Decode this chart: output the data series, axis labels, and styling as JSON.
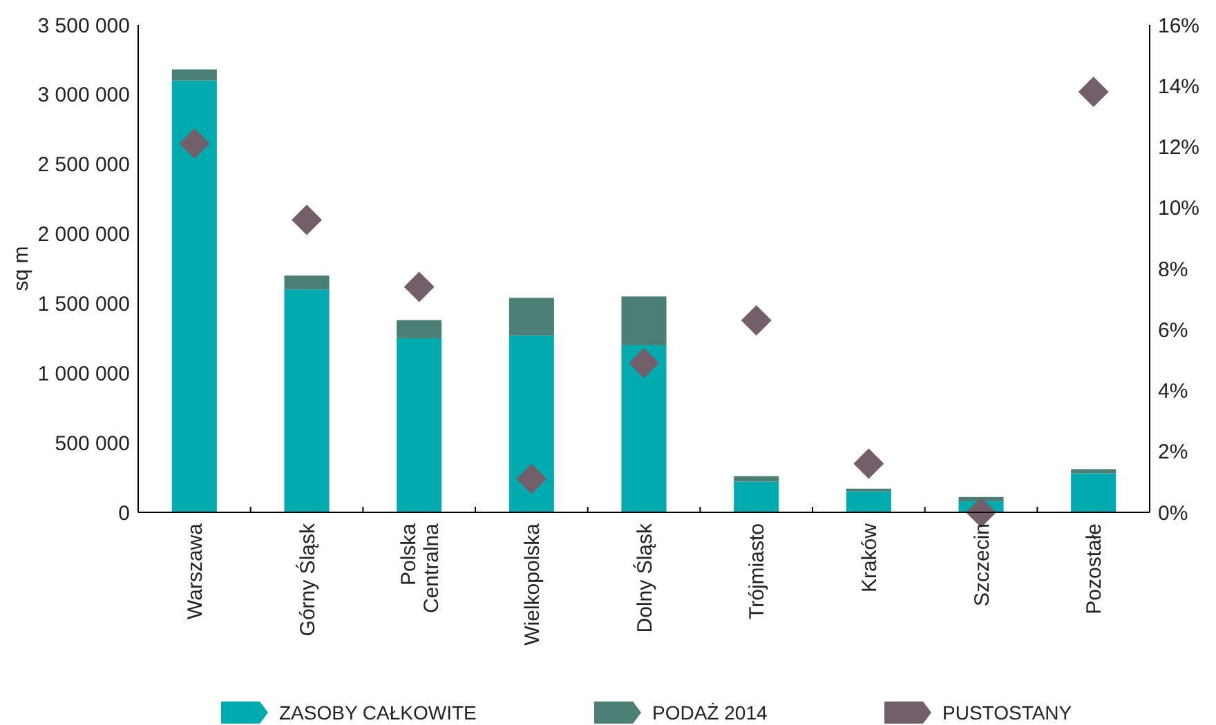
{
  "chart_data": {
    "type": "bar",
    "stacked": true,
    "ylabel": "sq m",
    "categories": [
      "Warszawa",
      "Górny Śląsk",
      "Polska Centralna",
      "Wielkopolska",
      "Dolny Śląsk",
      "Trójmiasto",
      "Kraków",
      "Szczecin",
      "Pozostałe"
    ],
    "series": [
      {
        "name": "ZASOBY CAŁKOWITE",
        "color": "#00abb0",
        "values": [
          3100000,
          1600000,
          1250000,
          1270000,
          1200000,
          220000,
          150000,
          80000,
          280000
        ]
      },
      {
        "name": "PODAŻ 2014",
        "color": "#4b7f75",
        "values": [
          80000,
          100000,
          130000,
          270000,
          350000,
          40000,
          20000,
          30000,
          30000
        ]
      },
      {
        "name": "PUSTOSTANY",
        "type": "scatter",
        "axis": "y2",
        "marker": "diamond",
        "color": "#735f6a",
        "values": [
          12.1,
          9.6,
          7.4,
          1.1,
          4.9,
          6.3,
          1.6,
          0,
          13.8
        ]
      }
    ],
    "ylim": [
      0,
      3500000
    ],
    "yticks": [
      {
        "value": 0,
        "label": "0"
      },
      {
        "value": 500000,
        "label": "500 000"
      },
      {
        "value": 1000000,
        "label": "1 000 000"
      },
      {
        "value": 1500000,
        "label": "1 500 000"
      },
      {
        "value": 2000000,
        "label": "2 000 000"
      },
      {
        "value": 2500000,
        "label": "2 500 000"
      },
      {
        "value": 3000000,
        "label": "3 000 000"
      },
      {
        "value": 3500000,
        "label": "3 500 000"
      }
    ],
    "y2lim": [
      0,
      16
    ],
    "y2ticks": [
      {
        "value": 0,
        "label": "0%"
      },
      {
        "value": 2,
        "label": "2%"
      },
      {
        "value": 4,
        "label": "4%"
      },
      {
        "value": 6,
        "label": "6%"
      },
      {
        "value": 8,
        "label": "8%"
      },
      {
        "value": 10,
        "label": "10%"
      },
      {
        "value": 12,
        "label": "12%"
      },
      {
        "value": 14,
        "label": "14%"
      },
      {
        "value": 16,
        "label": "16%"
      }
    ],
    "grid": false,
    "legend": "bottom"
  }
}
